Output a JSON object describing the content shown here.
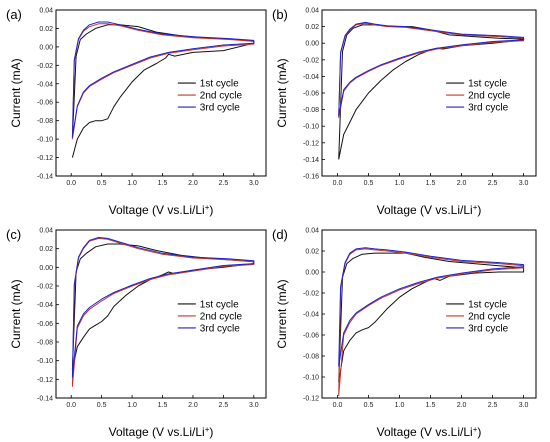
{
  "colors": {
    "1st cycle": "#111111",
    "2nd cycle": "#c0392b",
    "3rd cycle": "#2222cc"
  },
  "chart_data": [
    {
      "type": "line",
      "panel_label": "(a)",
      "xlabel": "Voltage (V vs.Li/Li",
      "xlabel_sup": "+",
      "xlabel_end": ")",
      "ylabel": "Current (mA)",
      "xlim": [
        -0.25,
        3.2
      ],
      "ylim": [
        -0.14,
        0.04
      ],
      "xticks": [
        "0.0",
        "0.5",
        "1.0",
        "1.5",
        "2.0",
        "2.5",
        "3.0"
      ],
      "yticks": [
        "0.04",
        "0.02",
        "0.00",
        "-0.02",
        "-0.04",
        "-0.06",
        "-0.08",
        "-0.10",
        "-0.12",
        "-0.14"
      ],
      "legend_position": "right",
      "series": [
        {
          "name": "1st cycle",
          "x": [
            0.02,
            0.1,
            0.2,
            0.3,
            0.4,
            0.5,
            0.6,
            0.7,
            0.8,
            1.0,
            1.2,
            1.4,
            1.55,
            1.6,
            1.7,
            2.0,
            2.5,
            3.0,
            3.0,
            2.7,
            2.2,
            1.8,
            1.4,
            1.1,
            0.8,
            0.6,
            0.4,
            0.25,
            0.15,
            0.08,
            0.02
          ],
          "y": [
            -0.12,
            -0.1,
            -0.088,
            -0.082,
            -0.08,
            -0.08,
            -0.078,
            -0.065,
            -0.055,
            -0.038,
            -0.025,
            -0.018,
            -0.012,
            -0.008,
            -0.01,
            -0.006,
            -0.004,
            0.004,
            0.006,
            0.008,
            0.01,
            0.012,
            0.016,
            0.022,
            0.024,
            0.024,
            0.02,
            0.014,
            0.008,
            -0.01,
            -0.1
          ]
        },
        {
          "name": "2nd cycle",
          "x": [
            0.02,
            0.1,
            0.2,
            0.3,
            0.5,
            0.7,
            1.0,
            1.3,
            1.6,
            2.0,
            2.5,
            3.0,
            3.0,
            2.6,
            2.0,
            1.5,
            1.1,
            0.8,
            0.6,
            0.45,
            0.3,
            0.2,
            0.12,
            0.05,
            0.02
          ],
          "y": [
            -0.1,
            -0.065,
            -0.05,
            -0.043,
            -0.035,
            -0.028,
            -0.02,
            -0.012,
            -0.007,
            -0.003,
            0.001,
            0.003,
            0.006,
            0.008,
            0.01,
            0.013,
            0.018,
            0.023,
            0.025,
            0.025,
            0.022,
            0.017,
            0.008,
            -0.015,
            -0.1
          ]
        },
        {
          "name": "3rd cycle",
          "x": [
            0.02,
            0.1,
            0.2,
            0.3,
            0.5,
            0.7,
            1.0,
            1.3,
            1.6,
            2.0,
            2.5,
            3.0,
            3.0,
            2.6,
            2.0,
            1.5,
            1.1,
            0.8,
            0.6,
            0.45,
            0.3,
            0.2,
            0.12,
            0.05,
            0.02
          ],
          "y": [
            -0.098,
            -0.064,
            -0.049,
            -0.042,
            -0.034,
            -0.027,
            -0.019,
            -0.011,
            -0.006,
            -0.002,
            0.002,
            0.004,
            0.007,
            0.009,
            0.011,
            0.014,
            0.019,
            0.024,
            0.027,
            0.027,
            0.024,
            0.018,
            0.009,
            -0.014,
            -0.098
          ]
        }
      ]
    },
    {
      "type": "line",
      "panel_label": "(b)",
      "xlabel": "Voltage (V vs.Li/Li",
      "xlabel_sup": "+",
      "xlabel_end": ")",
      "ylabel": "Current (mA)",
      "xlim": [
        -0.25,
        3.2
      ],
      "ylim": [
        -0.16,
        0.04
      ],
      "xticks": [
        "0.0",
        "0.5",
        "1.0",
        "1.5",
        "2.0",
        "2.5",
        "3.0"
      ],
      "yticks": [
        "0.04",
        "0.02",
        "0.00",
        "-0.02",
        "-0.04",
        "-0.06",
        "-0.08",
        "-0.10",
        "-0.12",
        "-0.14",
        "-0.16"
      ],
      "legend_position": "right",
      "series": [
        {
          "name": "1st cycle",
          "x": [
            0.02,
            0.1,
            0.2,
            0.3,
            0.4,
            0.5,
            0.7,
            0.9,
            1.1,
            1.3,
            1.5,
            1.6,
            1.7,
            2.0,
            2.5,
            3.0,
            3.0,
            2.6,
            2.2,
            1.8,
            1.5,
            1.2,
            0.9,
            0.6,
            0.4,
            0.25,
            0.15,
            0.08,
            0.02
          ],
          "y": [
            -0.14,
            -0.11,
            -0.095,
            -0.08,
            -0.07,
            -0.06,
            -0.045,
            -0.032,
            -0.022,
            -0.014,
            -0.008,
            -0.006,
            -0.007,
            -0.003,
            0.0,
            0.004,
            0.005,
            0.006,
            0.008,
            0.01,
            0.016,
            0.02,
            0.02,
            0.022,
            0.022,
            0.018,
            0.01,
            -0.01,
            -0.14
          ]
        },
        {
          "name": "2nd cycle",
          "x": [
            0.02,
            0.1,
            0.2,
            0.3,
            0.5,
            0.7,
            1.0,
            1.3,
            1.6,
            2.0,
            2.5,
            3.0,
            3.0,
            2.6,
            2.0,
            1.5,
            1.1,
            0.8,
            0.6,
            0.45,
            0.3,
            0.2,
            0.12,
            0.05,
            0.02
          ],
          "y": [
            -0.09,
            -0.058,
            -0.048,
            -0.042,
            -0.034,
            -0.027,
            -0.019,
            -0.012,
            -0.007,
            -0.003,
            0.001,
            0.003,
            0.006,
            0.008,
            0.01,
            0.015,
            0.019,
            0.02,
            0.022,
            0.024,
            0.022,
            0.016,
            0.008,
            -0.012,
            -0.09
          ]
        },
        {
          "name": "3rd cycle",
          "x": [
            0.02,
            0.1,
            0.2,
            0.3,
            0.5,
            0.7,
            1.0,
            1.3,
            1.6,
            2.0,
            2.5,
            3.0,
            3.0,
            2.6,
            2.0,
            1.5,
            1.1,
            0.8,
            0.6,
            0.45,
            0.3,
            0.2,
            0.12,
            0.05,
            0.02
          ],
          "y": [
            -0.088,
            -0.056,
            -0.047,
            -0.041,
            -0.033,
            -0.026,
            -0.018,
            -0.011,
            -0.006,
            -0.002,
            0.002,
            0.004,
            0.007,
            0.009,
            0.011,
            0.016,
            0.02,
            0.021,
            0.023,
            0.025,
            0.023,
            0.017,
            0.009,
            -0.011,
            -0.088
          ]
        }
      ]
    },
    {
      "type": "line",
      "panel_label": "(c)",
      "xlabel": "Voltage (V vs.Li/Li",
      "xlabel_sup": "+",
      "xlabel_end": ")",
      "ylabel": "Current (mA)",
      "xlim": [
        -0.25,
        3.2
      ],
      "ylim": [
        -0.14,
        0.04
      ],
      "xticks": [
        "0.0",
        "0.5",
        "1.0",
        "1.5",
        "2.0",
        "2.5",
        "3.0"
      ],
      "yticks": [
        "0.04",
        "0.02",
        "0.00",
        "-0.02",
        "-0.04",
        "-0.06",
        "-0.08",
        "-0.10",
        "-0.12",
        "-0.14"
      ],
      "legend_position": "right",
      "series": [
        {
          "name": "1st cycle",
          "x": [
            0.02,
            0.1,
            0.2,
            0.3,
            0.4,
            0.5,
            0.6,
            0.7,
            0.9,
            1.1,
            1.3,
            1.5,
            1.6,
            1.7,
            2.0,
            2.5,
            3.0,
            3.0,
            2.6,
            2.2,
            1.8,
            1.4,
            1.1,
            0.8,
            0.6,
            0.4,
            0.25,
            0.15,
            0.08,
            0.02
          ],
          "y": [
            -0.11,
            -0.085,
            -0.075,
            -0.066,
            -0.062,
            -0.058,
            -0.052,
            -0.042,
            -0.03,
            -0.02,
            -0.013,
            -0.008,
            -0.005,
            -0.007,
            -0.003,
            0.0,
            0.004,
            0.006,
            0.008,
            0.01,
            0.013,
            0.018,
            0.023,
            0.025,
            0.025,
            0.022,
            0.015,
            0.009,
            -0.005,
            -0.11
          ]
        },
        {
          "name": "2nd cycle",
          "x": [
            0.02,
            0.1,
            0.2,
            0.3,
            0.5,
            0.7,
            1.0,
            1.3,
            1.6,
            2.0,
            2.5,
            3.0,
            3.0,
            2.6,
            2.0,
            1.5,
            1.1,
            0.8,
            0.6,
            0.45,
            0.3,
            0.2,
            0.12,
            0.05,
            0.02
          ],
          "y": [
            -0.128,
            -0.065,
            -0.052,
            -0.045,
            -0.036,
            -0.028,
            -0.02,
            -0.013,
            -0.008,
            -0.004,
            0.001,
            0.003,
            0.006,
            0.008,
            0.01,
            0.014,
            0.02,
            0.026,
            0.03,
            0.031,
            0.028,
            0.02,
            0.01,
            -0.02,
            -0.128
          ]
        },
        {
          "name": "3rd cycle",
          "x": [
            0.02,
            0.1,
            0.2,
            0.3,
            0.5,
            0.7,
            1.0,
            1.3,
            1.6,
            2.0,
            2.5,
            3.0,
            3.0,
            2.6,
            2.0,
            1.5,
            1.1,
            0.8,
            0.6,
            0.45,
            0.3,
            0.2,
            0.12,
            0.05,
            0.02
          ],
          "y": [
            -0.118,
            -0.063,
            -0.05,
            -0.043,
            -0.034,
            -0.027,
            -0.019,
            -0.012,
            -0.007,
            -0.003,
            0.002,
            0.004,
            0.007,
            0.009,
            0.011,
            0.015,
            0.021,
            0.027,
            0.031,
            0.032,
            0.029,
            0.021,
            0.011,
            -0.018,
            -0.118
          ]
        }
      ]
    },
    {
      "type": "line",
      "panel_label": "(d)",
      "xlabel": "Voltage (V vs.Li/Li",
      "xlabel_sup": "+",
      "xlabel_end": ")",
      "ylabel": "Current (mA)",
      "xlim": [
        -0.25,
        3.2
      ],
      "ylim": [
        -0.12,
        0.04
      ],
      "xticks": [
        "0.0",
        "0.5",
        "1.0",
        "1.5",
        "2.0",
        "2.5",
        "3.0"
      ],
      "yticks": [
        "0.04",
        "0.02",
        "0.00",
        "-0.02",
        "-0.04",
        "-0.06",
        "-0.08",
        "-0.10",
        "-0.12"
      ],
      "legend_position": "right",
      "series": [
        {
          "name": "1st cycle",
          "x": [
            0.02,
            0.1,
            0.2,
            0.3,
            0.4,
            0.5,
            0.6,
            0.8,
            1.0,
            1.2,
            1.4,
            1.55,
            1.65,
            1.8,
            2.2,
            2.6,
            3.0,
            3.0,
            2.6,
            2.2,
            1.8,
            1.4,
            1.1,
            0.8,
            0.6,
            0.4,
            0.25,
            0.15,
            0.08,
            0.02
          ],
          "y": [
            -0.105,
            -0.075,
            -0.065,
            -0.058,
            -0.055,
            -0.053,
            -0.048,
            -0.035,
            -0.024,
            -0.016,
            -0.01,
            -0.006,
            -0.008,
            -0.004,
            -0.001,
            0.0,
            0.0,
            0.004,
            0.006,
            0.008,
            0.01,
            0.014,
            0.018,
            0.018,
            0.018,
            0.017,
            0.013,
            0.008,
            -0.005,
            -0.105
          ]
        },
        {
          "name": "2nd cycle",
          "x": [
            0.02,
            0.1,
            0.2,
            0.3,
            0.5,
            0.7,
            1.0,
            1.3,
            1.6,
            2.0,
            2.5,
            3.0,
            3.0,
            2.6,
            2.0,
            1.5,
            1.1,
            0.8,
            0.6,
            0.45,
            0.3,
            0.2,
            0.12,
            0.05,
            0.02
          ],
          "y": [
            -0.118,
            -0.06,
            -0.048,
            -0.04,
            -0.032,
            -0.025,
            -0.017,
            -0.011,
            -0.006,
            -0.002,
            0.002,
            0.004,
            0.006,
            0.008,
            0.01,
            0.014,
            0.018,
            0.02,
            0.021,
            0.022,
            0.021,
            0.017,
            0.008,
            -0.015,
            -0.118
          ]
        },
        {
          "name": "3rd cycle",
          "x": [
            0.02,
            0.1,
            0.2,
            0.3,
            0.5,
            0.7,
            1.0,
            1.3,
            1.6,
            2.0,
            2.5,
            3.0,
            3.0,
            2.6,
            2.0,
            1.5,
            1.1,
            0.8,
            0.6,
            0.45,
            0.3,
            0.2,
            0.12,
            0.05,
            0.02
          ],
          "y": [
            -0.09,
            -0.058,
            -0.046,
            -0.039,
            -0.031,
            -0.024,
            -0.016,
            -0.01,
            -0.005,
            -0.001,
            0.003,
            0.005,
            0.007,
            0.009,
            0.011,
            0.015,
            0.019,
            0.021,
            0.022,
            0.023,
            0.022,
            0.018,
            0.009,
            -0.014,
            -0.09
          ]
        }
      ]
    }
  ]
}
